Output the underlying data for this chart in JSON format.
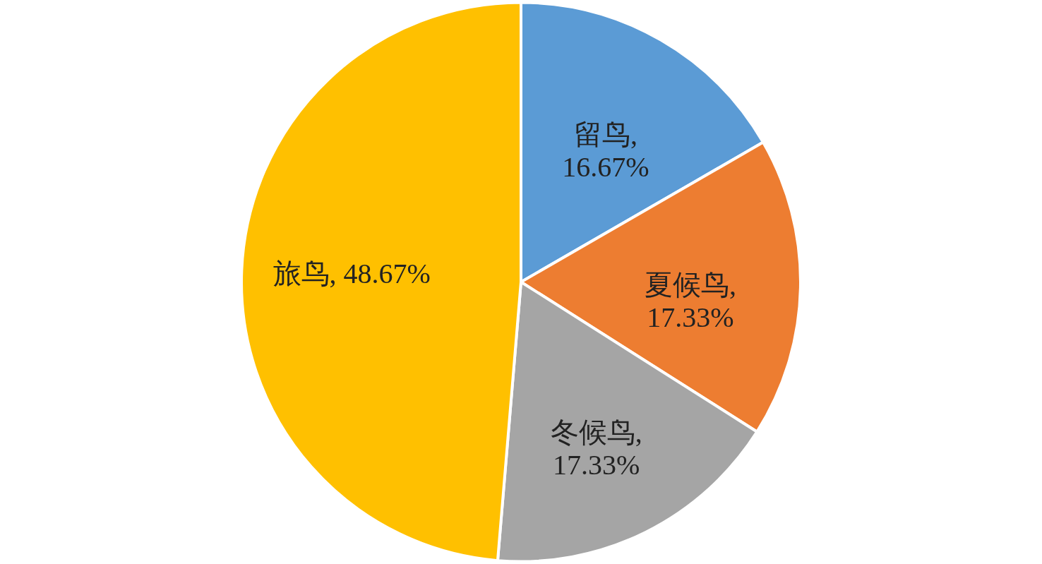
{
  "chart_data": {
    "type": "pie",
    "categories": [
      "留鸟",
      "夏候鸟",
      "冬候鸟",
      "旅鸟"
    ],
    "values": [
      16.67,
      17.33,
      17.33,
      48.67
    ],
    "colors": [
      "#5b9bd5",
      "#ed7d31",
      "#a5a5a5",
      "#ffc000"
    ],
    "value_labels": [
      ", 16.67%",
      ", 17.33%",
      ", 17.33%",
      ", 48.67%"
    ]
  }
}
